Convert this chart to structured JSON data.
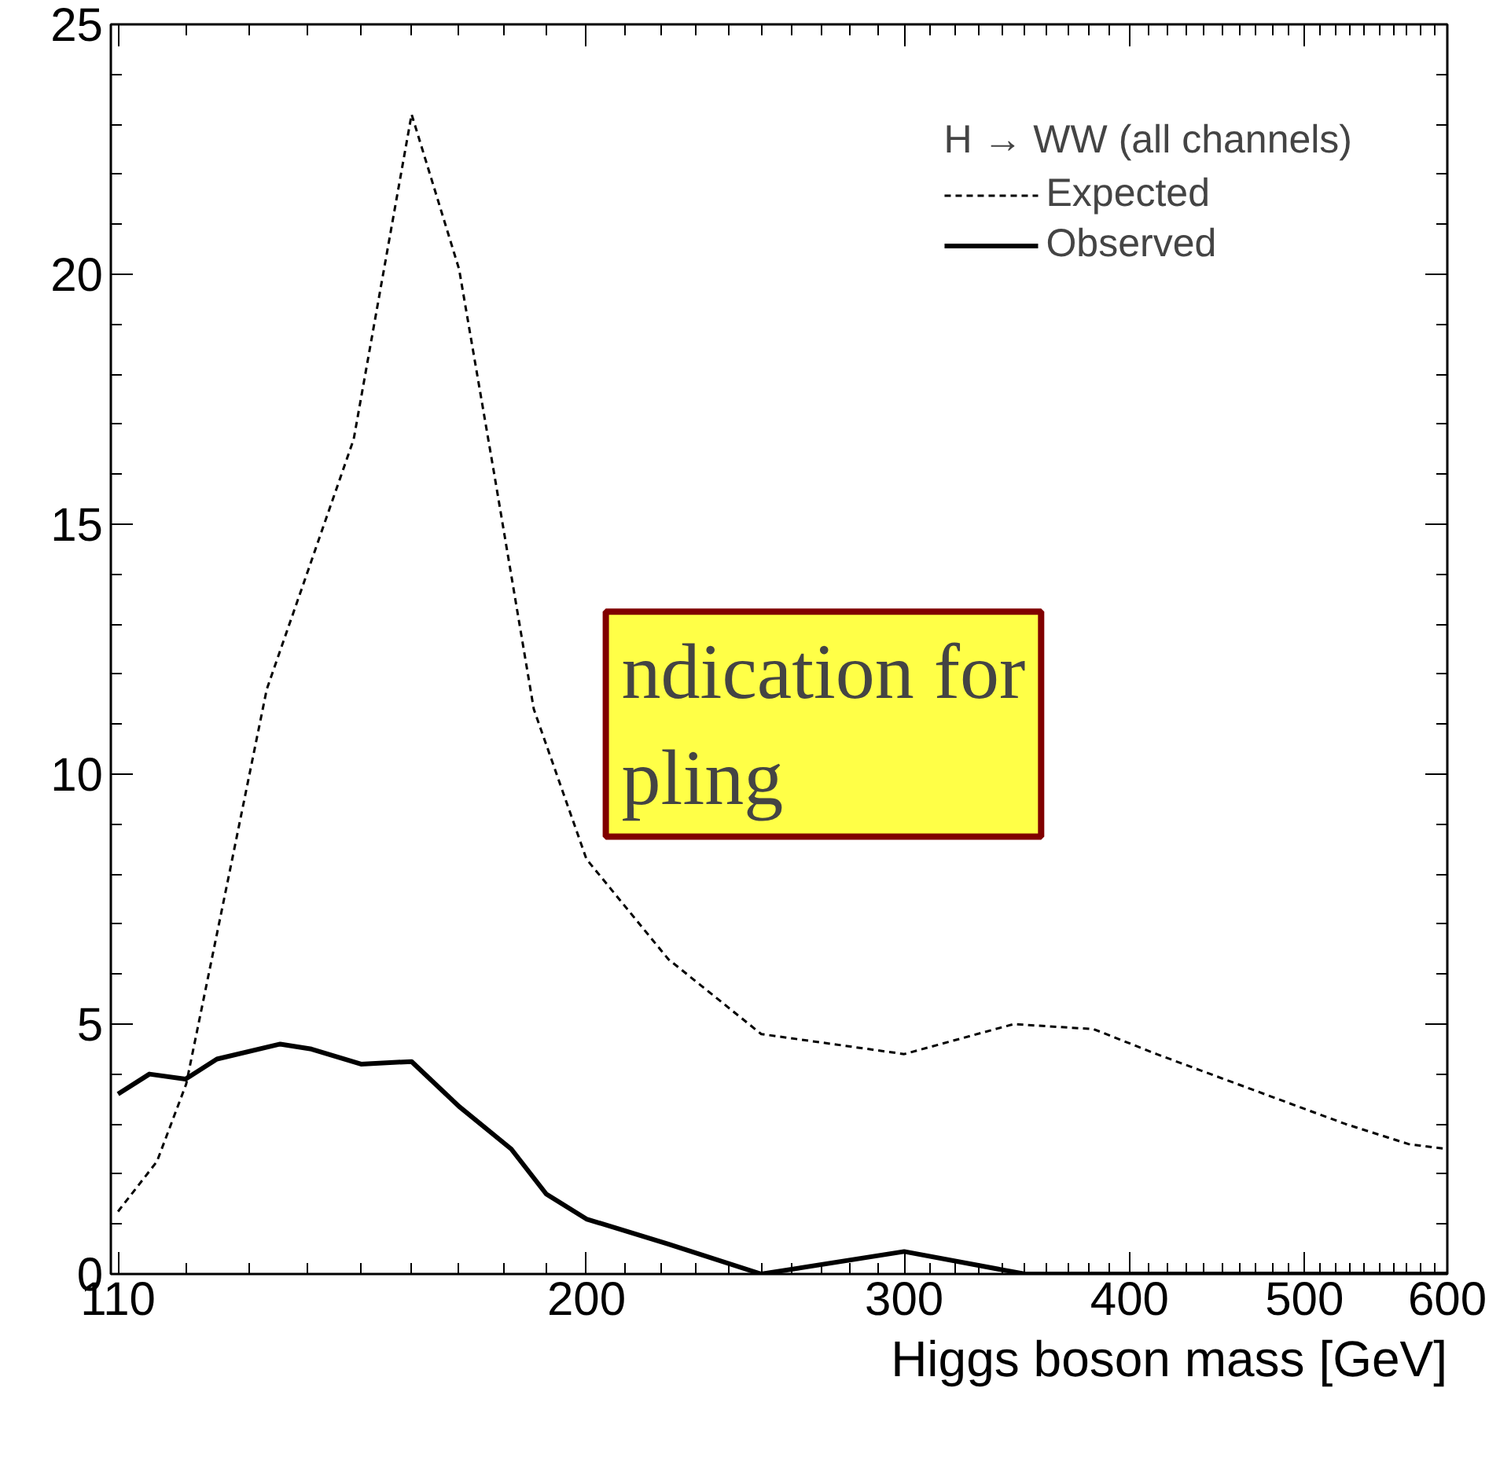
{
  "chart_data": {
    "type": "line",
    "xlabel": "Higgs boson mass [GeV]",
    "legend_title": "H → WW (all channels)",
    "log": "x",
    "xlim": [
      109,
      600
    ],
    "ylim": [
      0,
      25
    ],
    "xticks": [
      110,
      200,
      300,
      400,
      500,
      600
    ],
    "yticks": [
      0,
      5,
      10,
      15,
      20,
      25
    ],
    "grid": false,
    "legend": "top right",
    "series": [
      {
        "name": "Expected",
        "color": "#000000",
        "line_style": "dashed",
        "x": [
          110,
          115.6,
          120,
          126.6,
          133,
          148.6,
          160,
          170,
          177.8,
          187,
          200,
          222,
          250,
          300,
          345,
          382,
          414,
          467,
          527,
          571,
          600
        ],
        "values": [
          1.25,
          2.25,
          3.8,
          7.9,
          11.7,
          16.7,
          23.2,
          20.1,
          16,
          11.3,
          8.3,
          6.3,
          4.8,
          4.4,
          5.0,
          4.9,
          4.4,
          3.7,
          3.0,
          2.6,
          2.5
        ]
      },
      {
        "name": "Observed",
        "color": "#000000",
        "line_style": "solid",
        "x": [
          110,
          114.5,
          119.9,
          124.8,
          135.3,
          140.8,
          150,
          160,
          170,
          181.7,
          190,
          200,
          222,
          250,
          300,
          350,
          600
        ],
        "values": [
          3.6,
          4.0,
          3.9,
          4.3,
          4.6,
          4.5,
          4.2,
          4.25,
          3.35,
          2.5,
          1.6,
          1.1,
          0.6,
          0,
          0.45,
          0,
          0
        ]
      }
    ],
    "annotations": [
      "ndication for\npling"
    ]
  }
}
